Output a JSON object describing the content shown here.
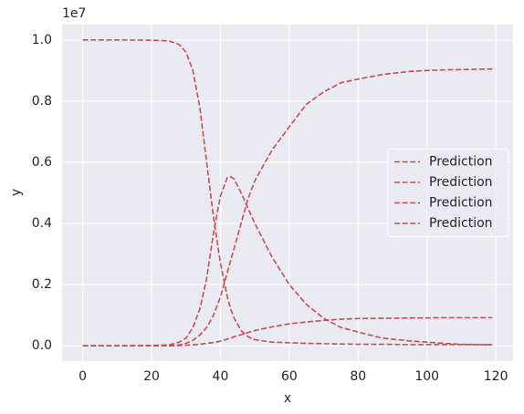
{
  "chart_data": {
    "type": "line",
    "x_label": "x",
    "y_label": "y",
    "y_offset_label": "1e7",
    "x": [
      0,
      10,
      20,
      25,
      28,
      30,
      32,
      34,
      36,
      38,
      40,
      42,
      43,
      44,
      46,
      48,
      50,
      55,
      60,
      65,
      70,
      75,
      80,
      87,
      95,
      100,
      105,
      110,
      119
    ],
    "series": [
      {
        "name": "Prediction",
        "color": "#c44e52",
        "values": [
          1.0,
          1.0,
          0.999,
          0.997,
          0.985,
          0.96,
          0.9,
          0.78,
          0.6,
          0.42,
          0.27,
          0.16,
          0.12,
          0.09,
          0.05,
          0.03,
          0.02,
          0.012,
          0.01,
          0.008,
          0.007,
          0.006,
          0.005,
          0.005,
          0.004,
          0.004,
          0.004,
          0.004,
          0.004
        ]
      },
      {
        "name": "Prediction",
        "color": "#c44e52",
        "values": [
          0,
          0,
          0.001,
          0.003,
          0.012,
          0.025,
          0.06,
          0.12,
          0.22,
          0.37,
          0.49,
          0.55,
          0.553,
          0.545,
          0.5,
          0.45,
          0.4,
          0.29,
          0.2,
          0.135,
          0.09,
          0.06,
          0.045,
          0.025,
          0.016,
          0.012,
          0.008,
          0.005,
          0.003
        ]
      },
      {
        "name": "Prediction",
        "color": "#c44e52",
        "values": [
          0,
          0,
          0,
          0.001,
          0.003,
          0.008,
          0.018,
          0.035,
          0.06,
          0.1,
          0.16,
          0.24,
          0.28,
          0.32,
          0.4,
          0.48,
          0.54,
          0.64,
          0.716,
          0.79,
          0.83,
          0.86,
          0.872,
          0.887,
          0.897,
          0.9,
          0.902,
          0.903,
          0.905
        ]
      },
      {
        "name": "Prediction",
        "color": "#c44e52",
        "values": [
          0,
          0,
          0,
          0,
          0.001,
          0.002,
          0.003,
          0.005,
          0.008,
          0.011,
          0.015,
          0.022,
          0.025,
          0.03,
          0.036,
          0.043,
          0.05,
          0.062,
          0.072,
          0.078,
          0.083,
          0.087,
          0.089,
          0.09,
          0.091,
          0.091,
          0.092,
          0.092,
          0.092
        ]
      }
    ],
    "xlim": [
      -6,
      125
    ],
    "ylim": [
      -0.05,
      1.05
    ],
    "xticks": [
      0,
      20,
      40,
      60,
      80,
      100,
      120
    ],
    "yticks": [
      {
        "value": 0,
        "label": "0.0"
      },
      {
        "value": 0.2,
        "label": "0.2"
      },
      {
        "value": 0.4,
        "label": "0.4"
      },
      {
        "value": 0.6,
        "label": "0.6"
      },
      {
        "value": 0.8,
        "label": "0.8"
      },
      {
        "value": 1.0,
        "label": "1.0"
      }
    ],
    "grid": true,
    "legend": "center right"
  }
}
